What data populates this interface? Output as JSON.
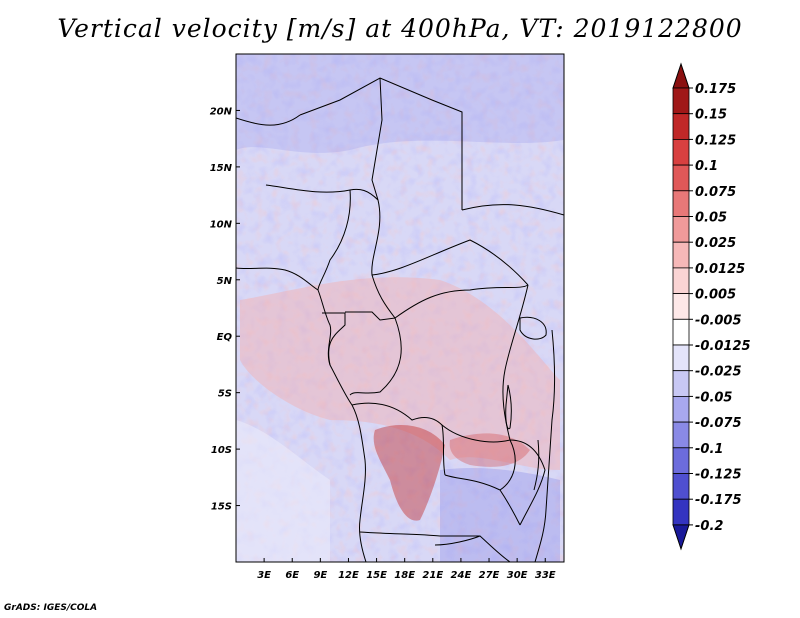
{
  "title": "Vertical velocity [m/s] at 400hPa, VT: 2019122800",
  "credit": "GrADS: IGES/COLA",
  "map": {
    "lon_range": [
      0,
      35
    ],
    "lat_range": [
      -20,
      25
    ],
    "lon_ticks": [
      {
        "value": 3,
        "label": "3E"
      },
      {
        "value": 6,
        "label": "6E"
      },
      {
        "value": 9,
        "label": "9E"
      },
      {
        "value": 12,
        "label": "12E"
      },
      {
        "value": 15,
        "label": "15E"
      },
      {
        "value": 18,
        "label": "18E"
      },
      {
        "value": 21,
        "label": "21E"
      },
      {
        "value": 24,
        "label": "24E"
      },
      {
        "value": 27,
        "label": "27E"
      },
      {
        "value": 30,
        "label": "30E"
      },
      {
        "value": 33,
        "label": "33E"
      }
    ],
    "lat_ticks": [
      {
        "value": 20,
        "label": "20N"
      },
      {
        "value": 15,
        "label": "15N"
      },
      {
        "value": 10,
        "label": "10N"
      },
      {
        "value": 5,
        "label": "5N"
      },
      {
        "value": 0,
        "label": "EQ"
      },
      {
        "value": -5,
        "label": "5S"
      },
      {
        "value": -10,
        "label": "10S"
      },
      {
        "value": -15,
        "label": "15S"
      }
    ]
  },
  "colorbar": {
    "levels": [
      {
        "label": "0.175",
        "color": "#a01818"
      },
      {
        "label": "0.15",
        "color": "#c02828"
      },
      {
        "label": "0.125",
        "color": "#d84040"
      },
      {
        "label": "0.1",
        "color": "#e05858"
      },
      {
        "label": "0.075",
        "color": "#e87878"
      },
      {
        "label": "0.05",
        "color": "#f09a9a"
      },
      {
        "label": "0.025",
        "color": "#f6b8b8"
      },
      {
        "label": "0.0125",
        "color": "#fad4d4"
      },
      {
        "label": "0.005",
        "color": "#fde8e8"
      },
      {
        "label": "-0.005",
        "color": "#ffffff"
      },
      {
        "label": "-0.0125",
        "color": "#e4e4fa"
      },
      {
        "label": "-0.025",
        "color": "#c8c8f4"
      },
      {
        "label": "-0.05",
        "color": "#a8a8ee"
      },
      {
        "label": "-0.075",
        "color": "#8a8ae6"
      },
      {
        "label": "-0.1",
        "color": "#6c6cdc"
      },
      {
        "label": "-0.125",
        "color": "#4f4fd0"
      },
      {
        "label": "-0.175",
        "color": "#3434c0"
      },
      {
        "label": "-0.2",
        "color": "#1e1eaa"
      }
    ],
    "top_color": "#8a1010",
    "bottom_color": "#1a1a9a"
  }
}
